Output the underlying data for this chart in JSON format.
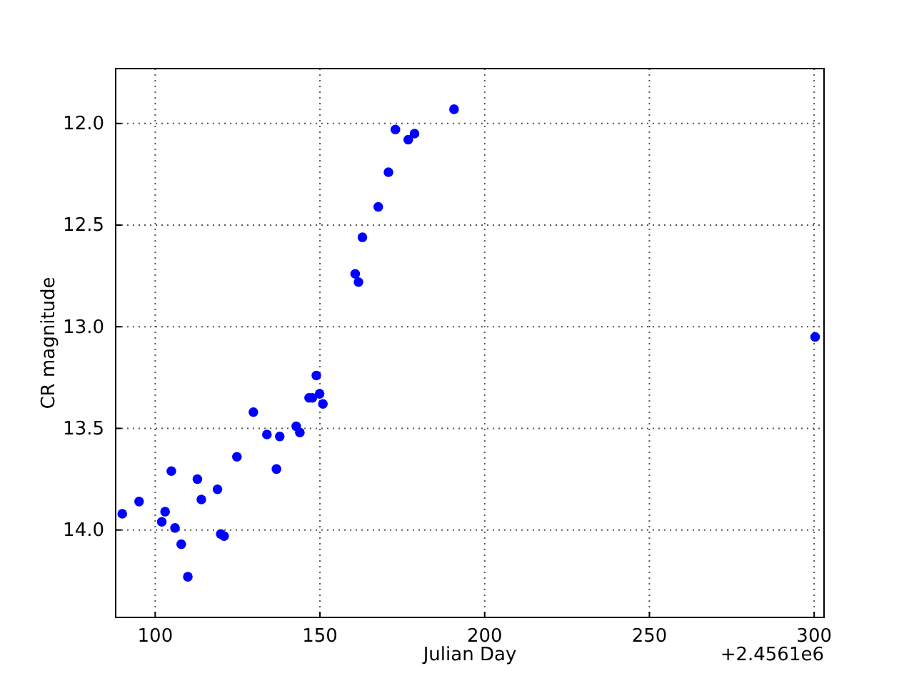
{
  "chart_data": {
    "type": "scatter",
    "xlabel": "Julian Day",
    "ylabel": "CR magnitude",
    "annotations": [
      "+2.4561e6"
    ],
    "x": [
      90.0,
      95.1,
      104.9,
      102.0,
      103.0,
      106.0,
      107.9,
      109.9,
      112.8,
      114.0,
      118.9,
      119.9,
      120.9,
      124.8,
      129.8,
      133.9,
      136.8,
      137.8,
      142.8,
      143.9,
      146.7,
      147.7,
      148.9,
      149.9,
      150.9,
      160.7,
      161.7,
      162.9,
      167.7,
      170.8,
      172.9,
      176.8,
      178.7,
      190.7,
      300.3
    ],
    "series": [
      {
        "color": "#0000ff",
        "values": [
          13.92,
          13.86,
          13.71,
          13.96,
          13.91,
          13.99,
          14.07,
          14.23,
          13.75,
          13.85,
          13.8,
          14.02,
          14.03,
          13.64,
          13.42,
          13.53,
          13.7,
          13.54,
          13.49,
          13.52,
          13.35,
          13.35,
          13.24,
          13.33,
          13.38,
          12.74,
          12.78,
          12.56,
          12.41,
          12.24,
          12.03,
          12.08,
          12.05,
          11.93,
          13.05
        ]
      }
    ],
    "xlim": [
      88,
      303
    ],
    "xticks": [
      100,
      150,
      200,
      250,
      300
    ],
    "ylim": [
      14.43,
      11.73
    ],
    "yticks": [
      {
        "value": 12,
        "label": "12.0"
      },
      {
        "value": 12.5,
        "label": "12.5"
      },
      {
        "value": 13,
        "label": "13.0"
      },
      {
        "value": 13.5,
        "label": "13.5"
      },
      {
        "value": 14,
        "label": "14.0"
      }
    ],
    "grid": true,
    "marker": "circle"
  }
}
